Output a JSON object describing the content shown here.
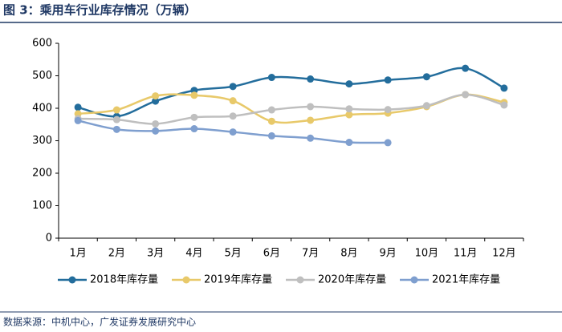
{
  "chart_data": {
    "type": "line",
    "title": "图 3：乘用车行业库存情况（万辆）",
    "source": "数据来源：中机中心，广发证券发展研究中心",
    "categories": [
      "1月",
      "2月",
      "3月",
      "4月",
      "5月",
      "6月",
      "7月",
      "8月",
      "9月",
      "10月",
      "11月",
      "12月"
    ],
    "series": [
      {
        "name": "2018年库存量",
        "color": "#236d9c",
        "values": [
          403,
          375,
          422,
          455,
          467,
          495,
          490,
          475,
          487,
          497,
          523,
          462
        ]
      },
      {
        "name": "2019年库存量",
        "color": "#e8c96a",
        "values": [
          383,
          395,
          438,
          440,
          423,
          360,
          363,
          380,
          385,
          405,
          442,
          418
        ]
      },
      {
        "name": "2020年库存量",
        "color": "#bfbfbf",
        "values": [
          368,
          365,
          352,
          372,
          376,
          395,
          405,
          398,
          396,
          408,
          442,
          410
        ]
      },
      {
        "name": "2021年库存量",
        "color": "#7f9fcf",
        "values": [
          362,
          335,
          330,
          337,
          327,
          315,
          308,
          295,
          294,
          null,
          null,
          null
        ]
      }
    ],
    "ylim": [
      0,
      600
    ],
    "yticks": [
      0,
      100,
      200,
      300,
      400,
      500,
      600
    ],
    "legend": "bottom"
  }
}
